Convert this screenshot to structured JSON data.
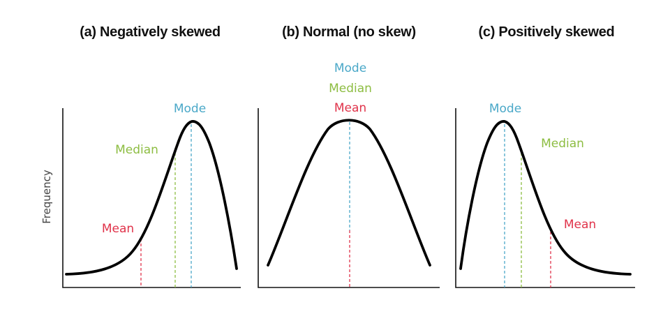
{
  "colors": {
    "mode": "#4aa8c8",
    "median": "#8dbd42",
    "mean": "#e0334a",
    "curve": "#000000",
    "axis": "#111111"
  },
  "y_axis_label": "Frequency",
  "panels": [
    {
      "title": "(a) Negatively skewed",
      "skew": "negative",
      "mode_label": "Mode",
      "median_label": "Median",
      "mean_label": "Mean"
    },
    {
      "title": "(b) Normal (no skew)",
      "skew": "none",
      "mode_label": "Mode",
      "median_label": "Median",
      "mean_label": "Mean"
    },
    {
      "title": "(c) Positively skewed",
      "skew": "positive",
      "mode_label": "Mode",
      "median_label": "Median",
      "mean_label": "Mean"
    }
  ]
}
